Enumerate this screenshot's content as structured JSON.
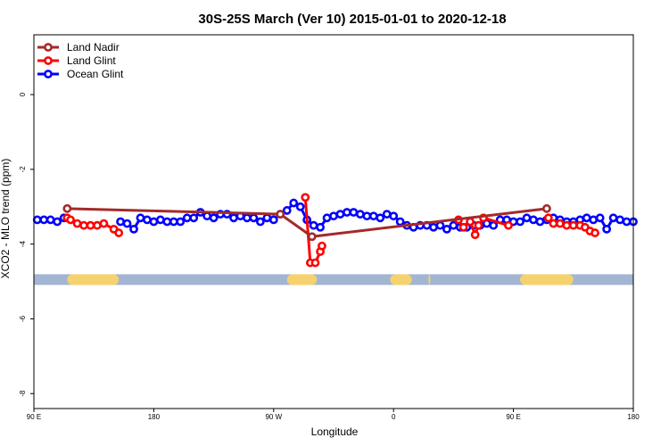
{
  "chart_data": {
    "type": "line",
    "title": "30S-25S March (Ver 10)   2015-01-01 to 2020-12-18",
    "xlabel": "Longitude",
    "ylabel": "XCO2 - MLO trend (ppm)",
    "xlim": [
      90,
      450
    ],
    "ylim": [
      -8.4,
      1.6
    ],
    "x_ticks": [
      {
        "value": 90,
        "label": "90 E"
      },
      {
        "value": 162,
        "label": "180"
      },
      {
        "value": 234,
        "label": "90 W"
      },
      {
        "value": 306,
        "label": "0"
      },
      {
        "value": 378,
        "label": "90 E"
      },
      {
        "value": 450,
        "label": "180"
      }
    ],
    "y_ticks": [
      0,
      -2,
      -4,
      -6,
      -8
    ],
    "grid": false,
    "legend_placement": "top-left",
    "band": {
      "y": -4.95,
      "base_color": "#a2b5d2",
      "land_color": "#f6d26e",
      "land_segments": [
        [
          110,
          141
        ],
        [
          242,
          260
        ],
        [
          304,
          317
        ],
        [
          327,
          328
        ],
        [
          382,
          414
        ]
      ]
    },
    "series": [
      {
        "name": "Land Nadir",
        "color": "#a52a2a",
        "x": [
          110,
          238,
          257,
          398
        ],
        "y": [
          -3.05,
          -3.2,
          -3.8,
          -3.05
        ]
      },
      {
        "name": "Land Glint",
        "color": "#ff0000",
        "x": [
          110,
          112,
          116,
          120,
          124,
          128,
          132,
          138,
          141,
          253,
          256,
          259,
          262,
          263,
          345,
          348,
          352,
          355,
          357,
          360,
          375,
          399,
          402,
          406,
          410,
          414,
          418,
          421,
          424,
          427
        ],
        "y": [
          -3.3,
          -3.35,
          -3.45,
          -3.5,
          -3.5,
          -3.5,
          -3.45,
          -3.6,
          -3.7,
          -2.75,
          -4.5,
          -4.5,
          -4.2,
          -4.05,
          -3.35,
          -3.55,
          -3.4,
          -3.75,
          -3.5,
          -3.3,
          -3.5,
          -3.3,
          -3.45,
          -3.45,
          -3.5,
          -3.5,
          -3.5,
          -3.55,
          -3.65,
          -3.7
        ],
        "breaks_after": [
          8,
          13,
          20
        ]
      },
      {
        "name": "Ocean Glint",
        "color": "#0000ff",
        "x": [
          92,
          96,
          100,
          104,
          108,
          142,
          146,
          150,
          154,
          158,
          162,
          166,
          170,
          174,
          178,
          182,
          186,
          190,
          194,
          198,
          202,
          206,
          210,
          214,
          218,
          222,
          226,
          230,
          234,
          238,
          242,
          246,
          250,
          254,
          258,
          262,
          266,
          270,
          274,
          278,
          282,
          286,
          290,
          294,
          298,
          302,
          306,
          310,
          314,
          318,
          322,
          326,
          330,
          334,
          338,
          342,
          346,
          350,
          354,
          358,
          362,
          366,
          370,
          374,
          378,
          382,
          386,
          390,
          394,
          398,
          402,
          406,
          410,
          414,
          418,
          422,
          426,
          430,
          434,
          438,
          442,
          446,
          450
        ],
        "y": [
          -3.35,
          -3.35,
          -3.35,
          -3.4,
          -3.3,
          -3.4,
          -3.45,
          -3.6,
          -3.3,
          -3.35,
          -3.4,
          -3.35,
          -3.4,
          -3.4,
          -3.4,
          -3.3,
          -3.3,
          -3.15,
          -3.25,
          -3.3,
          -3.2,
          -3.2,
          -3.3,
          -3.25,
          -3.3,
          -3.3,
          -3.4,
          -3.3,
          -3.35,
          -3.2,
          -3.1,
          -2.9,
          -3.0,
          -3.35,
          -3.5,
          -3.55,
          -3.3,
          -3.25,
          -3.2,
          -3.15,
          -3.15,
          -3.2,
          -3.25,
          -3.25,
          -3.3,
          -3.2,
          -3.25,
          -3.4,
          -3.5,
          -3.55,
          -3.5,
          -3.5,
          -3.55,
          -3.5,
          -3.6,
          -3.5,
          -3.55,
          -3.55,
          -3.5,
          -3.5,
          -3.45,
          -3.5,
          -3.35,
          -3.35,
          -3.4,
          -3.4,
          -3.3,
          -3.35,
          -3.4,
          -3.35,
          -3.3,
          -3.35,
          -3.4,
          -3.4,
          -3.35,
          -3.3,
          -3.35,
          -3.3,
          -3.6,
          -3.3,
          -3.35,
          -3.4,
          -3.4
        ],
        "breaks_after": [
          4
        ]
      }
    ]
  }
}
